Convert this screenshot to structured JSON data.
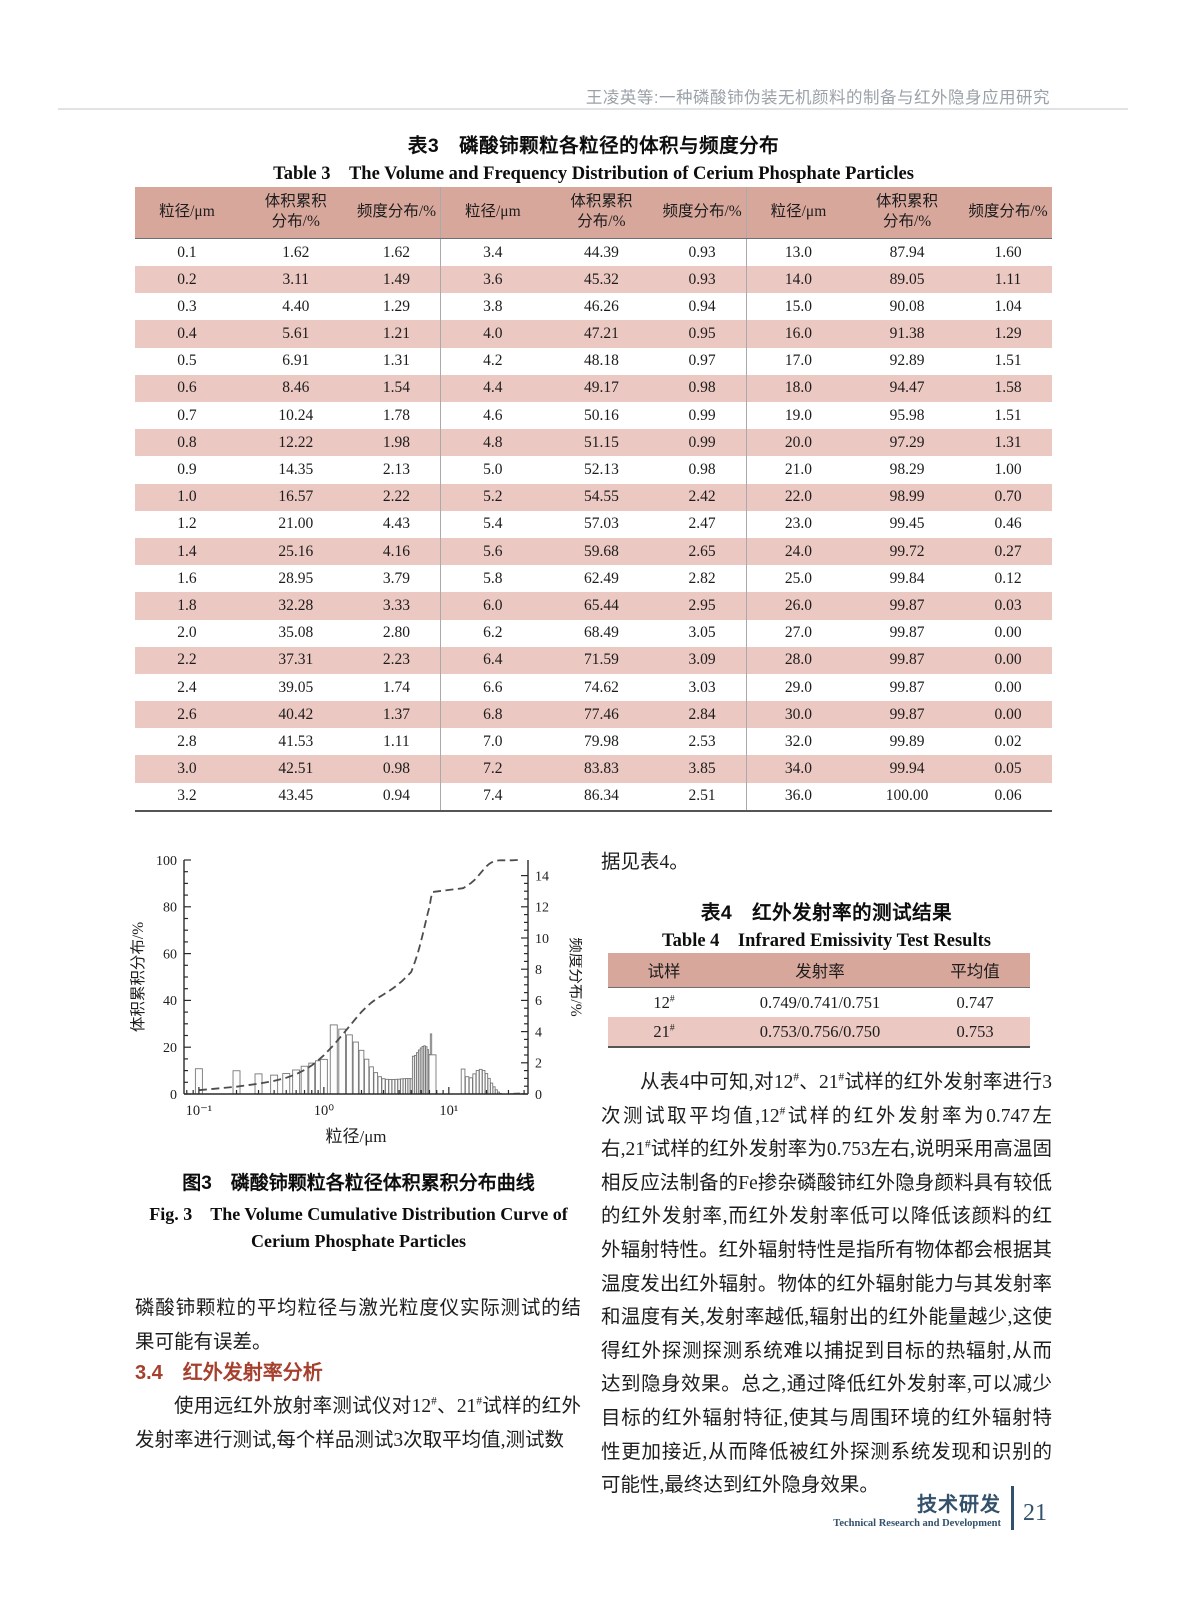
{
  "page": {
    "running_head": "王凌英等:一种磷酸铈伪装无机颜料的制备与红外隐身应用研究",
    "footer": {
      "section_zh": "技术研发",
      "section_en": "Technical Research and Development",
      "page_number": "21"
    }
  },
  "colors": {
    "table_header_bg": "#d8a79c",
    "table_row_alt_bg": "#ebc8c1",
    "section_heading_red": "#a6402e",
    "footer_blue": "#33516b",
    "running_head_gray": "#9aa1a8"
  },
  "table3": {
    "title_zh": "表3　磷酸铈颗粒各粒径的体积与频度分布",
    "title_en": "Table 3　The Volume and Frequency Distribution of Cerium Phosphate Particles",
    "headers": [
      "粒径/μm",
      "体积累积\n分布/%",
      "频度分布/%"
    ],
    "header_repeat": 3,
    "rows": [
      [
        "0.1",
        "1.62",
        "1.62",
        "3.4",
        "44.39",
        "0.93",
        "13.0",
        "87.94",
        "1.60"
      ],
      [
        "0.2",
        "3.11",
        "1.49",
        "3.6",
        "45.32",
        "0.93",
        "14.0",
        "89.05",
        "1.11"
      ],
      [
        "0.3",
        "4.40",
        "1.29",
        "3.8",
        "46.26",
        "0.94",
        "15.0",
        "90.08",
        "1.04"
      ],
      [
        "0.4",
        "5.61",
        "1.21",
        "4.0",
        "47.21",
        "0.95",
        "16.0",
        "91.38",
        "1.29"
      ],
      [
        "0.5",
        "6.91",
        "1.31",
        "4.2",
        "48.18",
        "0.97",
        "17.0",
        "92.89",
        "1.51"
      ],
      [
        "0.6",
        "8.46",
        "1.54",
        "4.4",
        "49.17",
        "0.98",
        "18.0",
        "94.47",
        "1.58"
      ],
      [
        "0.7",
        "10.24",
        "1.78",
        "4.6",
        "50.16",
        "0.99",
        "19.0",
        "95.98",
        "1.51"
      ],
      [
        "0.8",
        "12.22",
        "1.98",
        "4.8",
        "51.15",
        "0.99",
        "20.0",
        "97.29",
        "1.31"
      ],
      [
        "0.9",
        "14.35",
        "2.13",
        "5.0",
        "52.13",
        "0.98",
        "21.0",
        "98.29",
        "1.00"
      ],
      [
        "1.0",
        "16.57",
        "2.22",
        "5.2",
        "54.55",
        "2.42",
        "22.0",
        "98.99",
        "0.70"
      ],
      [
        "1.2",
        "21.00",
        "4.43",
        "5.4",
        "57.03",
        "2.47",
        "23.0",
        "99.45",
        "0.46"
      ],
      [
        "1.4",
        "25.16",
        "4.16",
        "5.6",
        "59.68",
        "2.65",
        "24.0",
        "99.72",
        "0.27"
      ],
      [
        "1.6",
        "28.95",
        "3.79",
        "5.8",
        "62.49",
        "2.82",
        "25.0",
        "99.84",
        "0.12"
      ],
      [
        "1.8",
        "32.28",
        "3.33",
        "6.0",
        "65.44",
        "2.95",
        "26.0",
        "99.87",
        "0.03"
      ],
      [
        "2.0",
        "35.08",
        "2.80",
        "6.2",
        "68.49",
        "3.05",
        "27.0",
        "99.87",
        "0.00"
      ],
      [
        "2.2",
        "37.31",
        "2.23",
        "6.4",
        "71.59",
        "3.09",
        "28.0",
        "99.87",
        "0.00"
      ],
      [
        "2.4",
        "39.05",
        "1.74",
        "6.6",
        "74.62",
        "3.03",
        "29.0",
        "99.87",
        "0.00"
      ],
      [
        "2.6",
        "40.42",
        "1.37",
        "6.8",
        "77.46",
        "2.84",
        "30.0",
        "99.87",
        "0.00"
      ],
      [
        "2.8",
        "41.53",
        "1.11",
        "7.0",
        "79.98",
        "2.53",
        "32.0",
        "99.89",
        "0.02"
      ],
      [
        "3.0",
        "42.51",
        "0.98",
        "7.2",
        "83.83",
        "3.85",
        "34.0",
        "99.94",
        "0.05"
      ],
      [
        "3.2",
        "43.45",
        "0.94",
        "7.4",
        "86.34",
        "2.51",
        "36.0",
        "100.00",
        "0.06"
      ]
    ]
  },
  "figure3": {
    "caption_zh": "图3　磷酸铈颗粒各粒径体积累积分布曲线",
    "caption_en_line1": "Fig. 3　The Volume Cumulative Distribution Curve of",
    "caption_en_line2": "Cerium Phosphate Particles"
  },
  "chart_data": {
    "type": "bar",
    "x_scale": "log",
    "xlabel": "粒径/μm",
    "ylabel_left": "体积累积分布/%",
    "ylabel_right": "频度分布/%",
    "x_tick_labels": [
      "10⁻¹",
      "10⁰",
      "10¹"
    ],
    "x_tick_values": [
      0.1,
      1,
      10
    ],
    "ylim_left": [
      0,
      100
    ],
    "ylim_right": [
      0,
      15
    ],
    "yticks_left": [
      0,
      20,
      40,
      60,
      80,
      100
    ],
    "yticks_right": [
      0,
      2,
      4,
      6,
      8,
      10,
      12,
      14
    ],
    "x": [
      0.1,
      0.2,
      0.3,
      0.4,
      0.5,
      0.6,
      0.7,
      0.8,
      0.9,
      1.0,
      1.2,
      1.4,
      1.6,
      1.8,
      2.0,
      2.2,
      2.4,
      2.6,
      2.8,
      3.0,
      3.2,
      3.4,
      3.6,
      3.8,
      4.0,
      4.2,
      4.4,
      4.6,
      4.8,
      5.0,
      5.2,
      5.4,
      5.6,
      5.8,
      6.0,
      6.2,
      6.4,
      6.6,
      6.8,
      7.0,
      7.2,
      7.4,
      13,
      14,
      15,
      16,
      17,
      18,
      19,
      20,
      21,
      22,
      23,
      24,
      25,
      26,
      27,
      28,
      29,
      30,
      32,
      34,
      36
    ],
    "series": [
      {
        "name": "频度分布",
        "render": "bar",
        "axis": "right",
        "values": [
          1.62,
          1.49,
          1.29,
          1.21,
          1.31,
          1.54,
          1.78,
          1.98,
          2.13,
          2.22,
          4.43,
          4.16,
          3.79,
          3.33,
          2.8,
          2.23,
          1.74,
          1.37,
          1.11,
          0.98,
          0.94,
          0.93,
          0.93,
          0.94,
          0.95,
          0.97,
          0.98,
          0.99,
          0.99,
          0.98,
          2.42,
          2.47,
          2.65,
          2.82,
          2.95,
          3.05,
          3.09,
          3.03,
          2.84,
          2.53,
          3.85,
          2.51,
          1.6,
          1.11,
          1.04,
          1.29,
          1.51,
          1.58,
          1.51,
          1.31,
          1.0,
          0.7,
          0.46,
          0.27,
          0.12,
          0.03,
          0.0,
          0.0,
          0.0,
          0.0,
          0.02,
          0.05,
          0.06
        ]
      },
      {
        "name": "体积累积分布",
        "render": "dashed-line",
        "axis": "left",
        "values": [
          1.62,
          3.11,
          4.4,
          5.61,
          6.91,
          8.46,
          10.24,
          12.22,
          14.35,
          16.57,
          21.0,
          25.16,
          28.95,
          32.28,
          35.08,
          37.31,
          39.05,
          40.42,
          41.53,
          42.51,
          43.45,
          44.39,
          45.32,
          46.26,
          47.21,
          48.18,
          49.17,
          50.16,
          51.15,
          52.13,
          54.55,
          57.03,
          59.68,
          62.49,
          65.44,
          68.49,
          71.59,
          74.62,
          77.46,
          79.98,
          83.83,
          86.34,
          87.94,
          89.05,
          90.08,
          91.38,
          92.89,
          94.47,
          95.98,
          97.29,
          98.29,
          98.99,
          99.45,
          99.72,
          99.84,
          99.87,
          99.87,
          99.87,
          99.87,
          99.87,
          99.89,
          99.94,
          100.0
        ]
      }
    ]
  },
  "left_column": {
    "para1": "磷酸铈颗粒的平均粒径与激光粒度仪实际测试的结果可能有误差。",
    "section_heading": "3.4　红外发射率分析",
    "para2": "使用远红外放射率测试仪对12#、21#试样的红外发射率进行测试,每个样品测试3次取平均值,测试数"
  },
  "right_column": {
    "intro": "据见表4。",
    "para1": "从表4中可知,对12#、21#试样的红外发射率进行3次测试取平均值,12#试样的红外发射率为0.747左右,21#试样的红外发射率为0.753左右,说明采用高温固相反应法制备的Fe掺杂磷酸铈红外隐身颜料具有较低的红外发射率,而红外发射率低可以降低该颜料的红外辐射特性。红外辐射特性是指所有物体都会根据其温度发出红外辐射。物体的红外辐射能力与其发射率和温度有关,发射率越低,辐射出的红外能量越少,这使得红外探测探测系统难以捕捉到目标的热辐射,从而达到隐身效果。总之,通过降低红外发射率,可以减少目标的红外辐射特征,使其与周围环境的红外辐射特性更加接近,从而降低被红外探测系统发现和识别的可能性,最终达到红外隐身效果。"
  },
  "table4": {
    "title_zh": "表4　红外发射率的测试结果",
    "title_en": "Table 4　Infrared Emissivity Test Results",
    "headers": [
      "试样",
      "发射率",
      "平均值"
    ],
    "rows": [
      [
        "12#",
        "0.749/0.741/0.751",
        "0.747"
      ],
      [
        "21#",
        "0.753/0.756/0.750",
        "0.753"
      ]
    ]
  }
}
